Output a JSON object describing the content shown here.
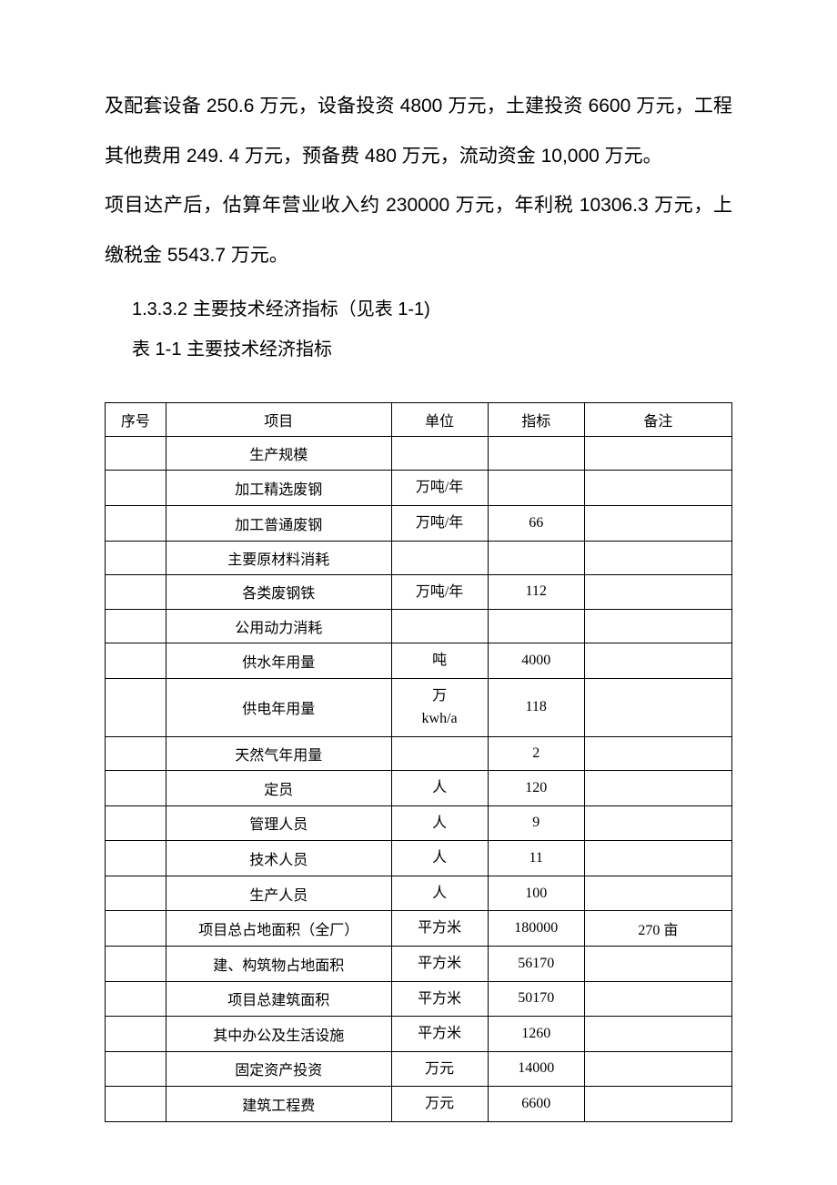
{
  "paragraphs": {
    "p1": "及配套设备 250.6 万元，设备投资 4800 万元，土建投资 6600 万元，工程其他费用 249. 4 万元，预备费 480 万元，流动资金 10,000 万元。",
    "p2": "项目达产后，估算年营业收入约 230000 万元，年利税 10306.3 万元，上缴税金 5543.7 万元。"
  },
  "section_heading": "1.3.3.2  主要技术经济指标（见表 1-1)",
  "table_caption": "表 1-1 主要技术经济指标",
  "table": {
    "headers": {
      "seq": "序号",
      "item": "项目",
      "unit": "单位",
      "value": "指标",
      "remark": "备注"
    },
    "rows": [
      {
        "seq": "",
        "item": "生产规模",
        "unit": "",
        "value": "",
        "remark": ""
      },
      {
        "seq": "",
        "item": "加工精选废钢",
        "unit": "万吨/年",
        "value": "",
        "remark": ""
      },
      {
        "seq": "",
        "item": "加工普通废钢",
        "unit": "万吨/年",
        "value": "66",
        "remark": ""
      },
      {
        "seq": "",
        "item": "主要原材料消耗",
        "unit": "",
        "value": "",
        "remark": ""
      },
      {
        "seq": "",
        "item": "各类废钢铁",
        "unit": "万吨/年",
        "value": "112",
        "remark": ""
      },
      {
        "seq": "",
        "item": "公用动力消耗",
        "unit": "",
        "value": "",
        "remark": ""
      },
      {
        "seq": "",
        "item": "供水年用量",
        "unit": "吨",
        "value": "4000",
        "remark": ""
      },
      {
        "seq": "",
        "item": "供电年用量",
        "unit": "万\nkwh/a",
        "value": "118",
        "remark": ""
      },
      {
        "seq": "",
        "item": "天然气年用量",
        "unit": "",
        "value": "2",
        "remark": ""
      },
      {
        "seq": "",
        "item": "定员",
        "unit": "人",
        "value": "120",
        "remark": ""
      },
      {
        "seq": "",
        "item": "管理人员",
        "unit": "人",
        "value": "9",
        "remark": ""
      },
      {
        "seq": "",
        "item": "技术人员",
        "unit": "人",
        "value": "11",
        "remark": ""
      },
      {
        "seq": "",
        "item": "生产人员",
        "unit": "人",
        "value": "100",
        "remark": ""
      },
      {
        "seq": "",
        "item": "项目总占地面积（全厂）",
        "unit": "平方米",
        "value": "180000",
        "remark": "270 亩"
      },
      {
        "seq": "",
        "item": "建、构筑物占地面积",
        "unit": "平方米",
        "value": "56170",
        "remark": ""
      },
      {
        "seq": "",
        "item": "项目总建筑面积",
        "unit": "平方米",
        "value": "50170",
        "remark": ""
      },
      {
        "seq": "",
        "item": "其中办公及生活设施",
        "unit": "平方米",
        "value": "1260",
        "remark": ""
      },
      {
        "seq": "",
        "item": "固定资产投资",
        "unit": "万元",
        "value": "14000",
        "remark": ""
      },
      {
        "seq": "",
        "item": "建筑工程费",
        "unit": "万元",
        "value": "6600",
        "remark": ""
      }
    ]
  }
}
